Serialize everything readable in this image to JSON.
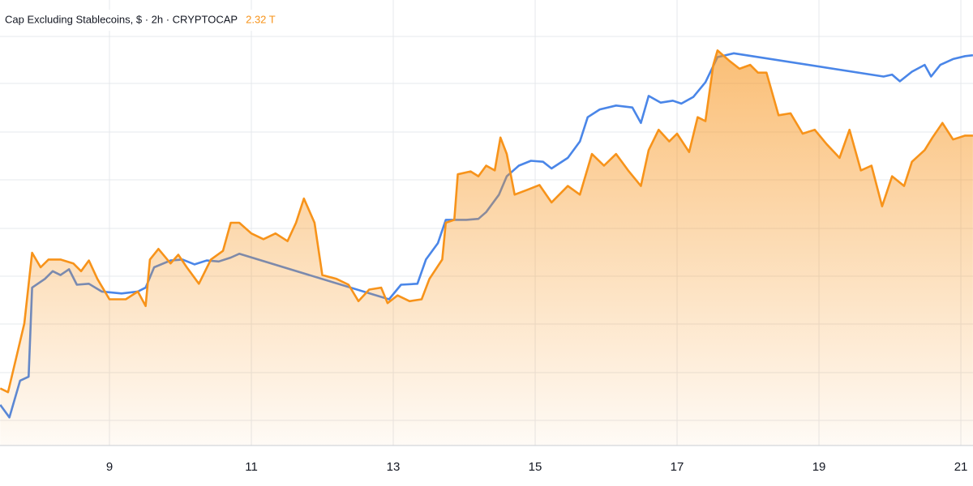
{
  "chart_data": {
    "type": "line",
    "legend_title": "Cap Excluding Stablecoins, $ · 2h · CRYPTOCAP",
    "legend_value": "2.32 T",
    "xlim": [
      7.457,
      21.171
    ],
    "xticks": [
      9,
      11,
      13,
      15,
      17,
      19,
      21
    ],
    "ylim": [
      2.0,
      2.46
    ],
    "grid": true,
    "series": [
      {
        "color": "#4a86e8",
        "area": false,
        "x": [
          7.46,
          7.59,
          7.74,
          7.86,
          7.91,
          8.09,
          8.2,
          8.31,
          8.43,
          8.54,
          8.71,
          8.89,
          9.17,
          9.4,
          9.51,
          9.63,
          9.86,
          10.03,
          10.2,
          10.37,
          10.54,
          10.71,
          10.83,
          12.94,
          13.11,
          13.34,
          13.46,
          13.63,
          13.74,
          14.03,
          14.2,
          14.31,
          14.49,
          14.6,
          14.77,
          14.94,
          15.11,
          15.23,
          15.46,
          15.63,
          15.74,
          15.91,
          16.14,
          16.37,
          16.49,
          16.6,
          16.77,
          16.94,
          17.06,
          17.23,
          17.4,
          17.57,
          17.8,
          19.91,
          20.03,
          20.14,
          20.31,
          20.49,
          20.58,
          20.71,
          20.89,
          21.06,
          21.17
        ],
        "values": [
          2.042,
          2.029,
          2.067,
          2.071,
          2.163,
          2.172,
          2.18,
          2.176,
          2.182,
          2.166,
          2.167,
          2.159,
          2.157,
          2.159,
          2.163,
          2.184,
          2.191,
          2.192,
          2.187,
          2.191,
          2.19,
          2.194,
          2.198,
          2.151,
          2.166,
          2.167,
          2.192,
          2.209,
          2.233,
          2.233,
          2.234,
          2.241,
          2.259,
          2.278,
          2.289,
          2.294,
          2.293,
          2.286,
          2.297,
          2.314,
          2.339,
          2.347,
          2.351,
          2.349,
          2.333,
          2.361,
          2.354,
          2.356,
          2.353,
          2.36,
          2.375,
          2.401,
          2.405,
          2.381,
          2.383,
          2.376,
          2.386,
          2.393,
          2.381,
          2.393,
          2.399,
          2.402,
          2.403
        ]
      },
      {
        "name": "Cap Excluding Stablecoins, $ · 2h · CRYPTOCAP",
        "color": "#f7931a",
        "area": true,
        "x": [
          7.46,
          7.57,
          7.69,
          7.8,
          7.91,
          8.03,
          8.14,
          8.31,
          8.49,
          8.6,
          8.71,
          8.83,
          9.0,
          9.23,
          9.4,
          9.51,
          9.57,
          9.69,
          9.86,
          9.97,
          10.09,
          10.26,
          10.43,
          10.6,
          10.71,
          10.83,
          11.0,
          11.17,
          11.34,
          11.51,
          11.63,
          11.74,
          11.89,
          12.0,
          12.2,
          12.37,
          12.51,
          12.66,
          12.83,
          12.92,
          13.06,
          13.23,
          13.4,
          13.51,
          13.69,
          13.74,
          13.86,
          13.91,
          14.09,
          14.2,
          14.31,
          14.43,
          14.51,
          14.6,
          14.71,
          14.89,
          15.06,
          15.23,
          15.46,
          15.63,
          15.8,
          15.97,
          16.14,
          16.31,
          16.49,
          16.6,
          16.74,
          16.89,
          17.0,
          17.17,
          17.29,
          17.4,
          17.51,
          17.57,
          17.74,
          17.88,
          18.03,
          18.14,
          18.26,
          18.43,
          18.6,
          18.77,
          18.94,
          19.11,
          19.29,
          19.43,
          19.59,
          19.74,
          19.89,
          20.03,
          20.2,
          20.31,
          20.49,
          20.6,
          20.74,
          20.89,
          21.06,
          21.17
        ],
        "values": [
          2.059,
          2.055,
          2.092,
          2.126,
          2.199,
          2.184,
          2.192,
          2.192,
          2.188,
          2.18,
          2.191,
          2.172,
          2.151,
          2.151,
          2.159,
          2.144,
          2.192,
          2.203,
          2.188,
          2.197,
          2.184,
          2.167,
          2.192,
          2.201,
          2.23,
          2.23,
          2.219,
          2.213,
          2.219,
          2.211,
          2.23,
          2.255,
          2.23,
          2.176,
          2.172,
          2.166,
          2.149,
          2.161,
          2.163,
          2.147,
          2.155,
          2.149,
          2.151,
          2.172,
          2.192,
          2.23,
          2.233,
          2.28,
          2.283,
          2.278,
          2.289,
          2.284,
          2.318,
          2.301,
          2.259,
          2.264,
          2.269,
          2.251,
          2.268,
          2.259,
          2.301,
          2.289,
          2.301,
          2.284,
          2.268,
          2.305,
          2.326,
          2.314,
          2.322,
          2.303,
          2.339,
          2.335,
          2.393,
          2.408,
          2.397,
          2.389,
          2.393,
          2.385,
          2.385,
          2.341,
          2.343,
          2.322,
          2.326,
          2.311,
          2.297,
          2.326,
          2.284,
          2.289,
          2.247,
          2.278,
          2.268,
          2.293,
          2.305,
          2.318,
          2.333,
          2.316,
          2.32,
          2.32
        ]
      }
    ]
  }
}
